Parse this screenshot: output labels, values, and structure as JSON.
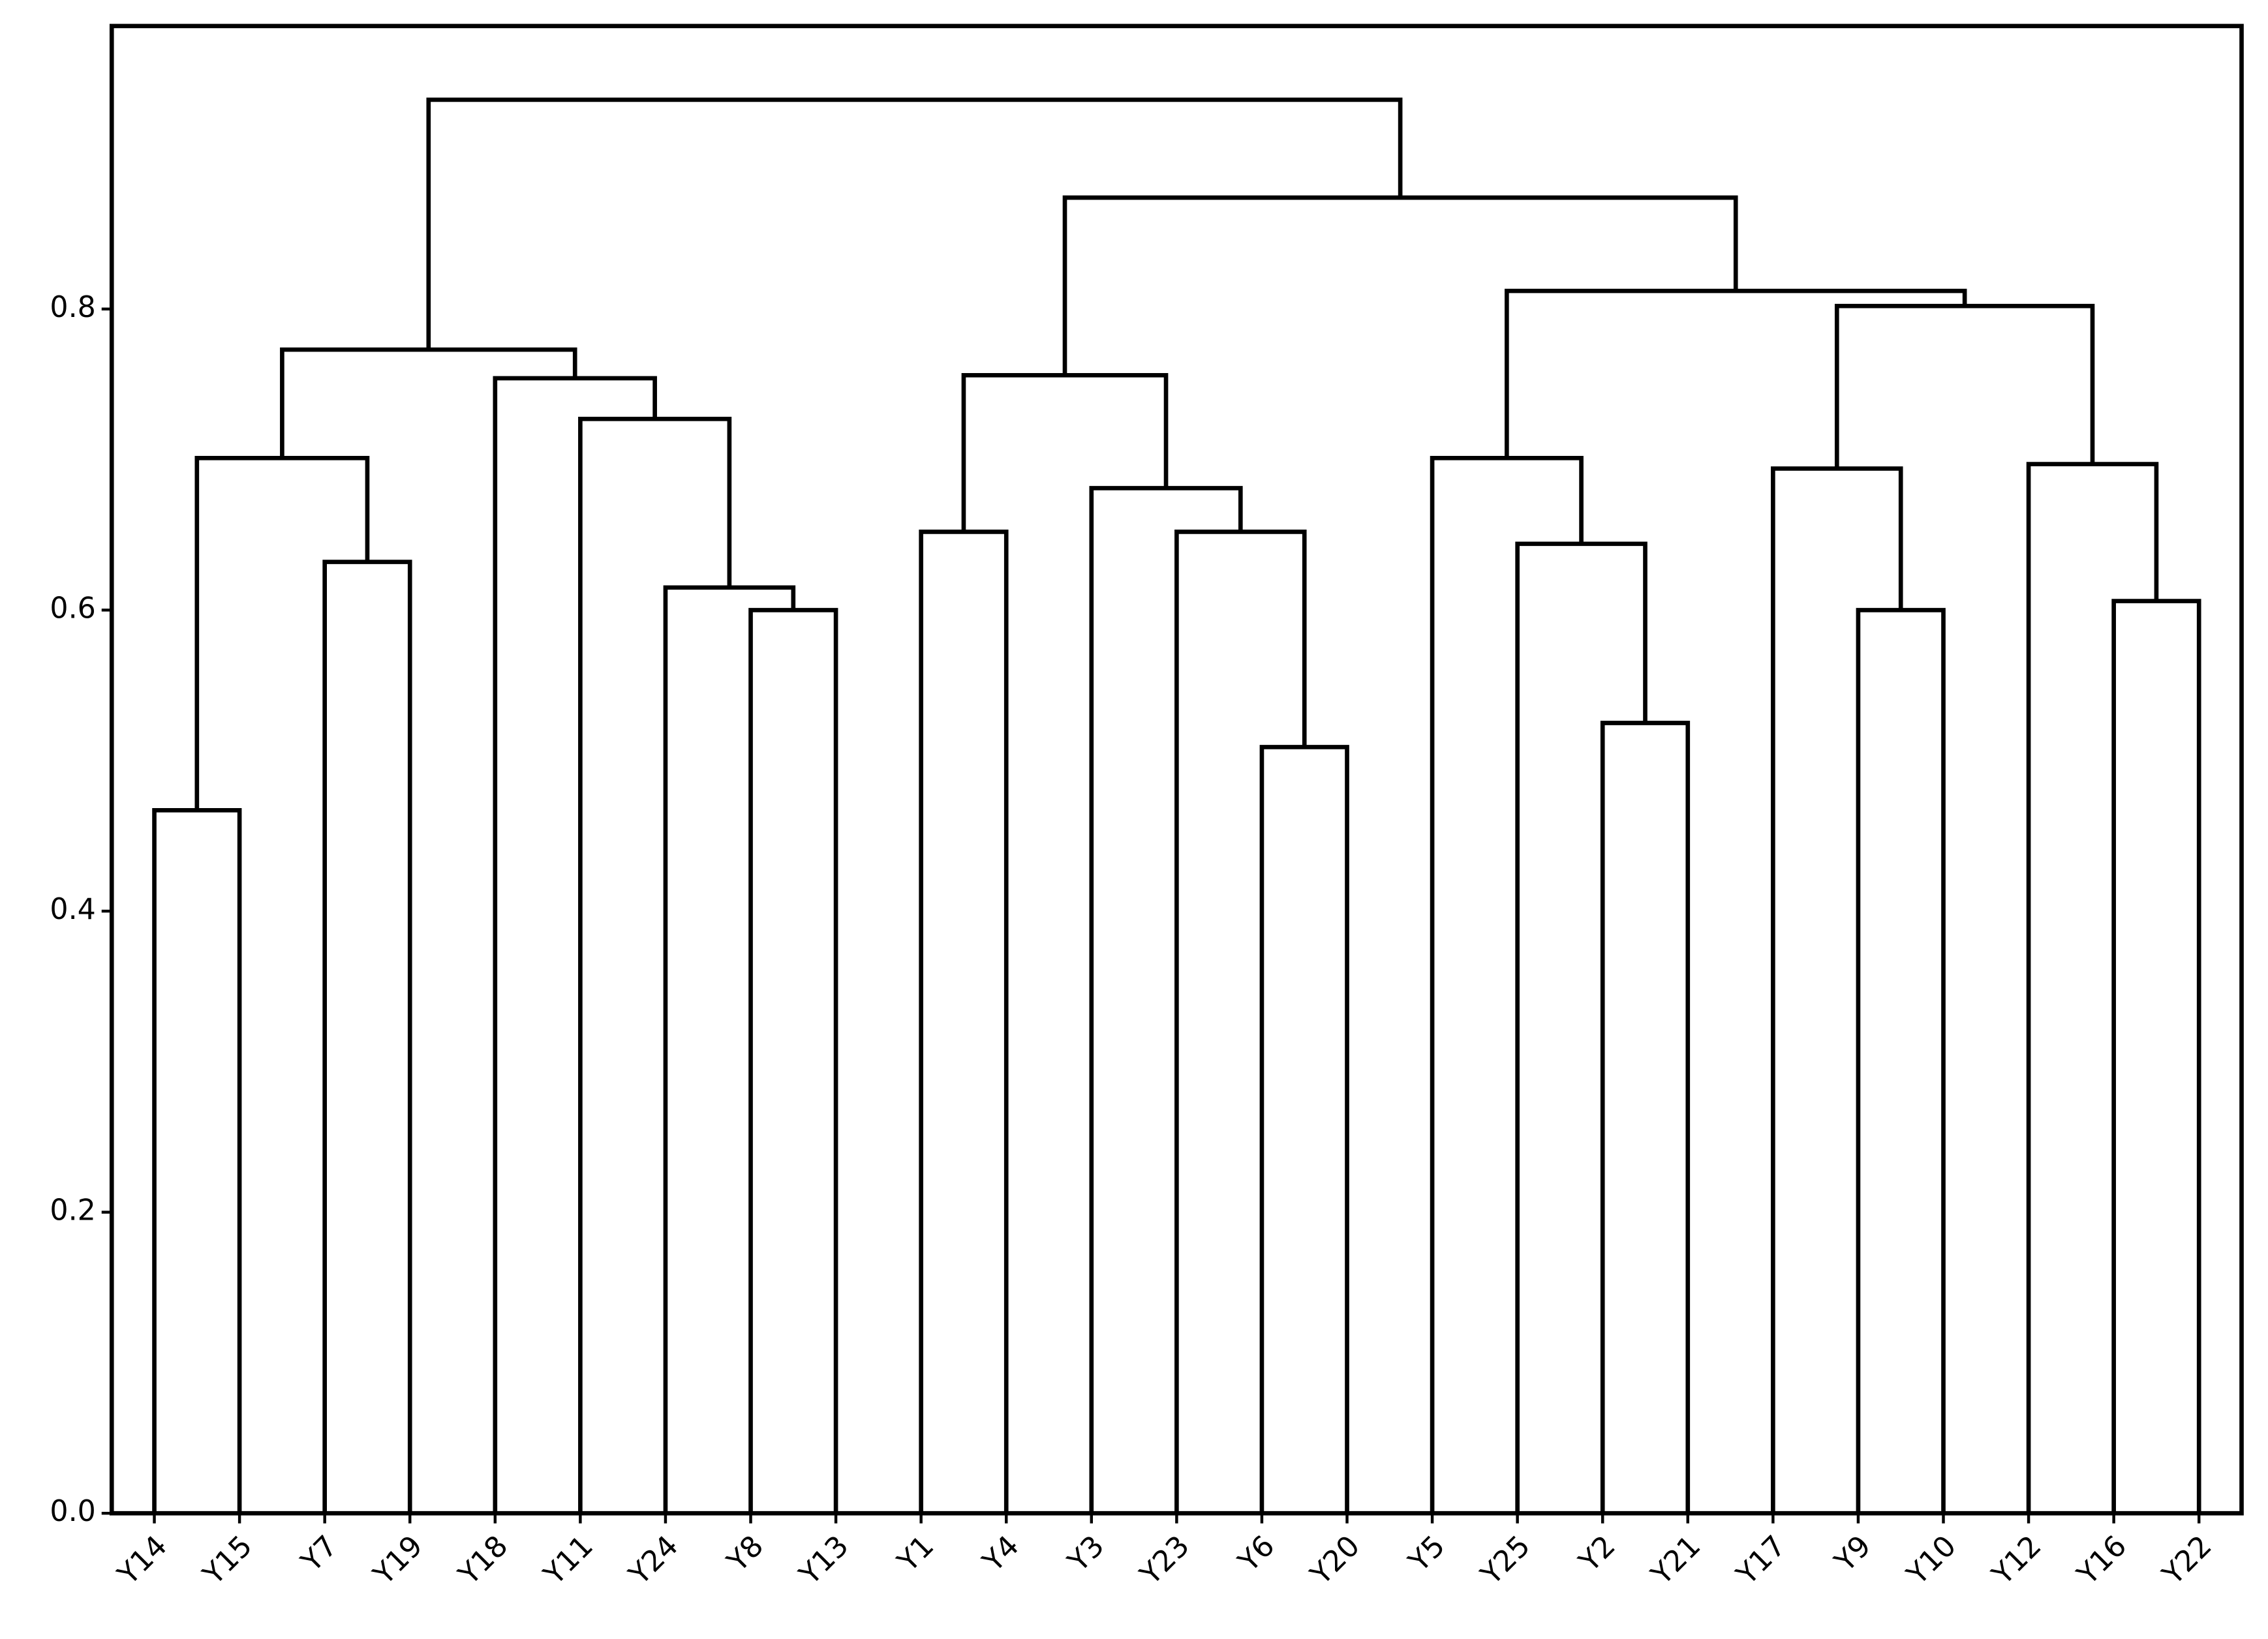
{
  "chart_data": {
    "type": "dendrogram",
    "color": "#000000",
    "ylim": [
      0,
      0.988
    ],
    "yticks": [
      {
        "value": 0,
        "label": "0.0"
      },
      0.2,
      0.4,
      0.6,
      0.8
    ],
    "tree": {
      "height": 0.939,
      "children": [
        {
          "height": 0.773,
          "children": [
            {
              "height": 0.701,
              "children": [
                {
                  "height": 0.467,
                  "children": [
                    "Y14",
                    "Y15"
                  ]
                },
                {
                  "height": 0.632,
                  "children": [
                    "Y7",
                    "Y19"
                  ]
                }
              ]
            },
            {
              "height": 0.754,
              "children": [
                "Y18",
                {
                  "height": 0.727,
                  "children": [
                    "Y11",
                    {
                      "height": 0.615,
                      "children": [
                        "Y24",
                        {
                          "height": 0.6,
                          "children": [
                            "Y8",
                            "Y13"
                          ]
                        }
                      ]
                    }
                  ]
                }
              ]
            }
          ]
        },
        {
          "height": 0.874,
          "children": [
            {
              "height": 0.756,
              "children": [
                {
                  "height": 0.652,
                  "children": [
                    "Y1",
                    "Y4"
                  ]
                },
                {
                  "height": 0.681,
                  "children": [
                    "Y3",
                    {
                      "height": 0.652,
                      "children": [
                        "Y23",
                        {
                          "height": 0.509,
                          "children": [
                            "Y6",
                            "Y20"
                          ]
                        }
                      ]
                    }
                  ]
                }
              ]
            },
            {
              "height": 0.812,
              "children": [
                {
                  "height": 0.701,
                  "children": [
                    "Y5",
                    {
                      "height": 0.644,
                      "children": [
                        "Y25",
                        {
                          "height": 0.525,
                          "children": [
                            "Y2",
                            "Y21"
                          ]
                        }
                      ]
                    }
                  ]
                },
                {
                  "height": 0.802,
                  "children": [
                    {
                      "height": 0.694,
                      "children": [
                        "Y17",
                        {
                          "height": 0.6,
                          "children": [
                            "Y9",
                            "Y10"
                          ]
                        }
                      ]
                    },
                    {
                      "height": 0.697,
                      "children": [
                        "Y12",
                        {
                          "height": 0.606,
                          "children": [
                            "Y16",
                            "Y22"
                          ]
                        }
                      ]
                    }
                  ]
                }
              ]
            }
          ]
        }
      ]
    }
  }
}
